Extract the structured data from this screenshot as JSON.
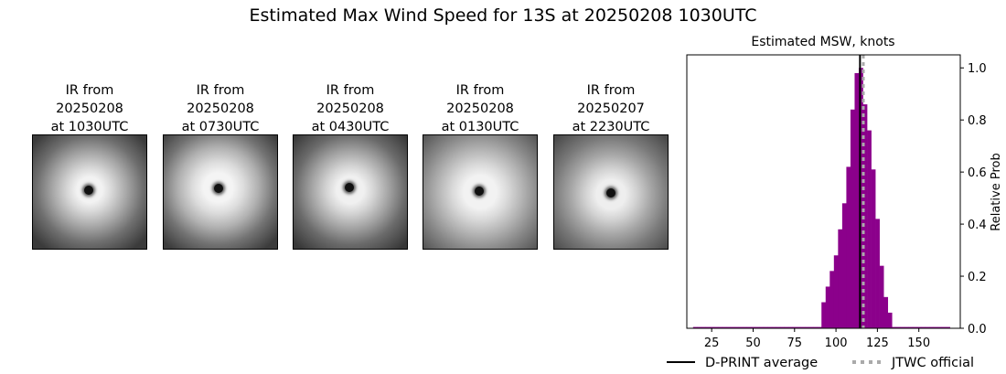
{
  "figure": {
    "title": "Estimated Max Wind Speed for 13S at 20250208 1030UTC"
  },
  "ir_panels": [
    {
      "label": "IR from\n20250208\nat 1030UTC"
    },
    {
      "label": "IR from\n20250208\nat 0730UTC"
    },
    {
      "label": "IR from\n20250208\nat 0430UTC"
    },
    {
      "label": "IR from\n20250208\nat 0130UTC"
    },
    {
      "label": "IR from\n20250207\nat 2230UTC"
    }
  ],
  "chart_data": {
    "type": "bar",
    "title": "Estimated MSW, knots",
    "xlabel": "",
    "ylabel": "Relative Prob",
    "xlim": [
      10,
      175
    ],
    "ylim": [
      0,
      1.05
    ],
    "xticks": [
      25,
      50,
      75,
      100,
      125,
      150
    ],
    "yticks": [
      0.0,
      0.2,
      0.4,
      0.6,
      0.8,
      1.0
    ],
    "bin_width": 2.5,
    "bins": [
      {
        "x": 15,
        "value": 0.005
      },
      {
        "x": 17.5,
        "value": 0.005
      },
      {
        "x": 20,
        "value": 0.005
      },
      {
        "x": 22.5,
        "value": 0.005
      },
      {
        "x": 25,
        "value": 0.005
      },
      {
        "x": 27.5,
        "value": 0.005
      },
      {
        "x": 30,
        "value": 0.005
      },
      {
        "x": 32.5,
        "value": 0.005
      },
      {
        "x": 35,
        "value": 0.005
      },
      {
        "x": 37.5,
        "value": 0.005
      },
      {
        "x": 40,
        "value": 0.005
      },
      {
        "x": 42.5,
        "value": 0.005
      },
      {
        "x": 45,
        "value": 0.005
      },
      {
        "x": 47.5,
        "value": 0.005
      },
      {
        "x": 50,
        "value": 0.005
      },
      {
        "x": 52.5,
        "value": 0.005
      },
      {
        "x": 55,
        "value": 0.005
      },
      {
        "x": 57.5,
        "value": 0.005
      },
      {
        "x": 60,
        "value": 0.005
      },
      {
        "x": 62.5,
        "value": 0.005
      },
      {
        "x": 65,
        "value": 0.005
      },
      {
        "x": 67.5,
        "value": 0.005
      },
      {
        "x": 70,
        "value": 0.005
      },
      {
        "x": 72.5,
        "value": 0.005
      },
      {
        "x": 75,
        "value": 0.005
      },
      {
        "x": 77.5,
        "value": 0.005
      },
      {
        "x": 80,
        "value": 0.005
      },
      {
        "x": 82.5,
        "value": 0.005
      },
      {
        "x": 85,
        "value": 0.005
      },
      {
        "x": 87.5,
        "value": 0.005
      },
      {
        "x": 90,
        "value": 0.005
      },
      {
        "x": 92.5,
        "value": 0.1
      },
      {
        "x": 95,
        "value": 0.16
      },
      {
        "x": 97.5,
        "value": 0.22
      },
      {
        "x": 100,
        "value": 0.28
      },
      {
        "x": 102.5,
        "value": 0.38
      },
      {
        "x": 105,
        "value": 0.48
      },
      {
        "x": 107.5,
        "value": 0.62
      },
      {
        "x": 110,
        "value": 0.84
      },
      {
        "x": 112.5,
        "value": 0.98
      },
      {
        "x": 115,
        "value": 1.0
      },
      {
        "x": 117.5,
        "value": 0.86
      },
      {
        "x": 120,
        "value": 0.76
      },
      {
        "x": 122.5,
        "value": 0.61
      },
      {
        "x": 125,
        "value": 0.42
      },
      {
        "x": 127.5,
        "value": 0.24
      },
      {
        "x": 130,
        "value": 0.12
      },
      {
        "x": 132.5,
        "value": 0.06
      },
      {
        "x": 135,
        "value": 0.005
      },
      {
        "x": 137.5,
        "value": 0.005
      },
      {
        "x": 140,
        "value": 0.005
      },
      {
        "x": 142.5,
        "value": 0.005
      },
      {
        "x": 145,
        "value": 0.005
      },
      {
        "x": 147.5,
        "value": 0.005
      },
      {
        "x": 150,
        "value": 0.005
      },
      {
        "x": 152.5,
        "value": 0.005
      },
      {
        "x": 155,
        "value": 0.005
      },
      {
        "x": 157.5,
        "value": 0.005
      },
      {
        "x": 160,
        "value": 0.005
      },
      {
        "x": 162.5,
        "value": 0.005
      },
      {
        "x": 165,
        "value": 0.005
      },
      {
        "x": 167.5,
        "value": 0.005
      }
    ],
    "bar_color": "#8b008b",
    "dprint_average": 114.5,
    "jtwc_official": 116.5,
    "legend": [
      {
        "label": "D-PRINT average",
        "style": "solid",
        "color": "#000000"
      },
      {
        "label": "JTWC official",
        "style": "dotted",
        "color": "#aaaaaa"
      }
    ],
    "legend_placement": "bottom",
    "grid": false
  }
}
